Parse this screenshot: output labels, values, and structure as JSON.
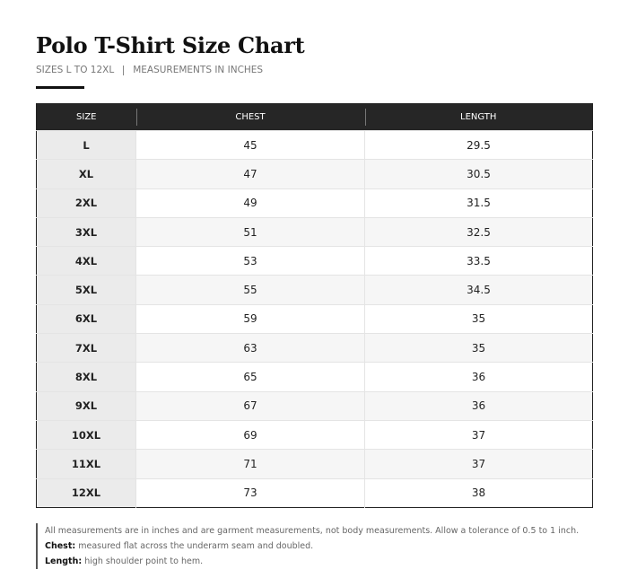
{
  "header": {
    "title": "Polo T-Shirt Size Chart",
    "subtitle": [
      "SIZES L TO 12XL",
      "MEASUREMENTS IN INCHES"
    ]
  },
  "table": {
    "columns": [
      "SIZE",
      "CHEST",
      "LENGTH"
    ],
    "rows": [
      [
        "L",
        45,
        29.5
      ],
      [
        "XL",
        47,
        30.5
      ],
      [
        "2XL",
        49,
        31.5
      ],
      [
        "3XL",
        51,
        32.5
      ],
      [
        "4XL",
        53,
        33.5
      ],
      [
        "5XL",
        55,
        34.5
      ],
      [
        "6XL",
        59,
        35
      ],
      [
        "7XL",
        63,
        35
      ],
      [
        "8XL",
        65,
        36
      ],
      [
        "9XL",
        67,
        36
      ],
      [
        "10XL",
        69,
        37
      ],
      [
        "11XL",
        71,
        37
      ],
      [
        "12XL",
        73,
        38
      ]
    ]
  },
  "notes": [
    {
      "text": "All measurements are in inches and are garment measurements, not body measurements. Allow a tolerance of 0.5 to 1 inch."
    },
    {
      "label": "Chest:",
      "text": "measured flat across the underarm seam and doubled."
    },
    {
      "label": "Length:",
      "text": "high shoulder point to hem."
    }
  ]
}
